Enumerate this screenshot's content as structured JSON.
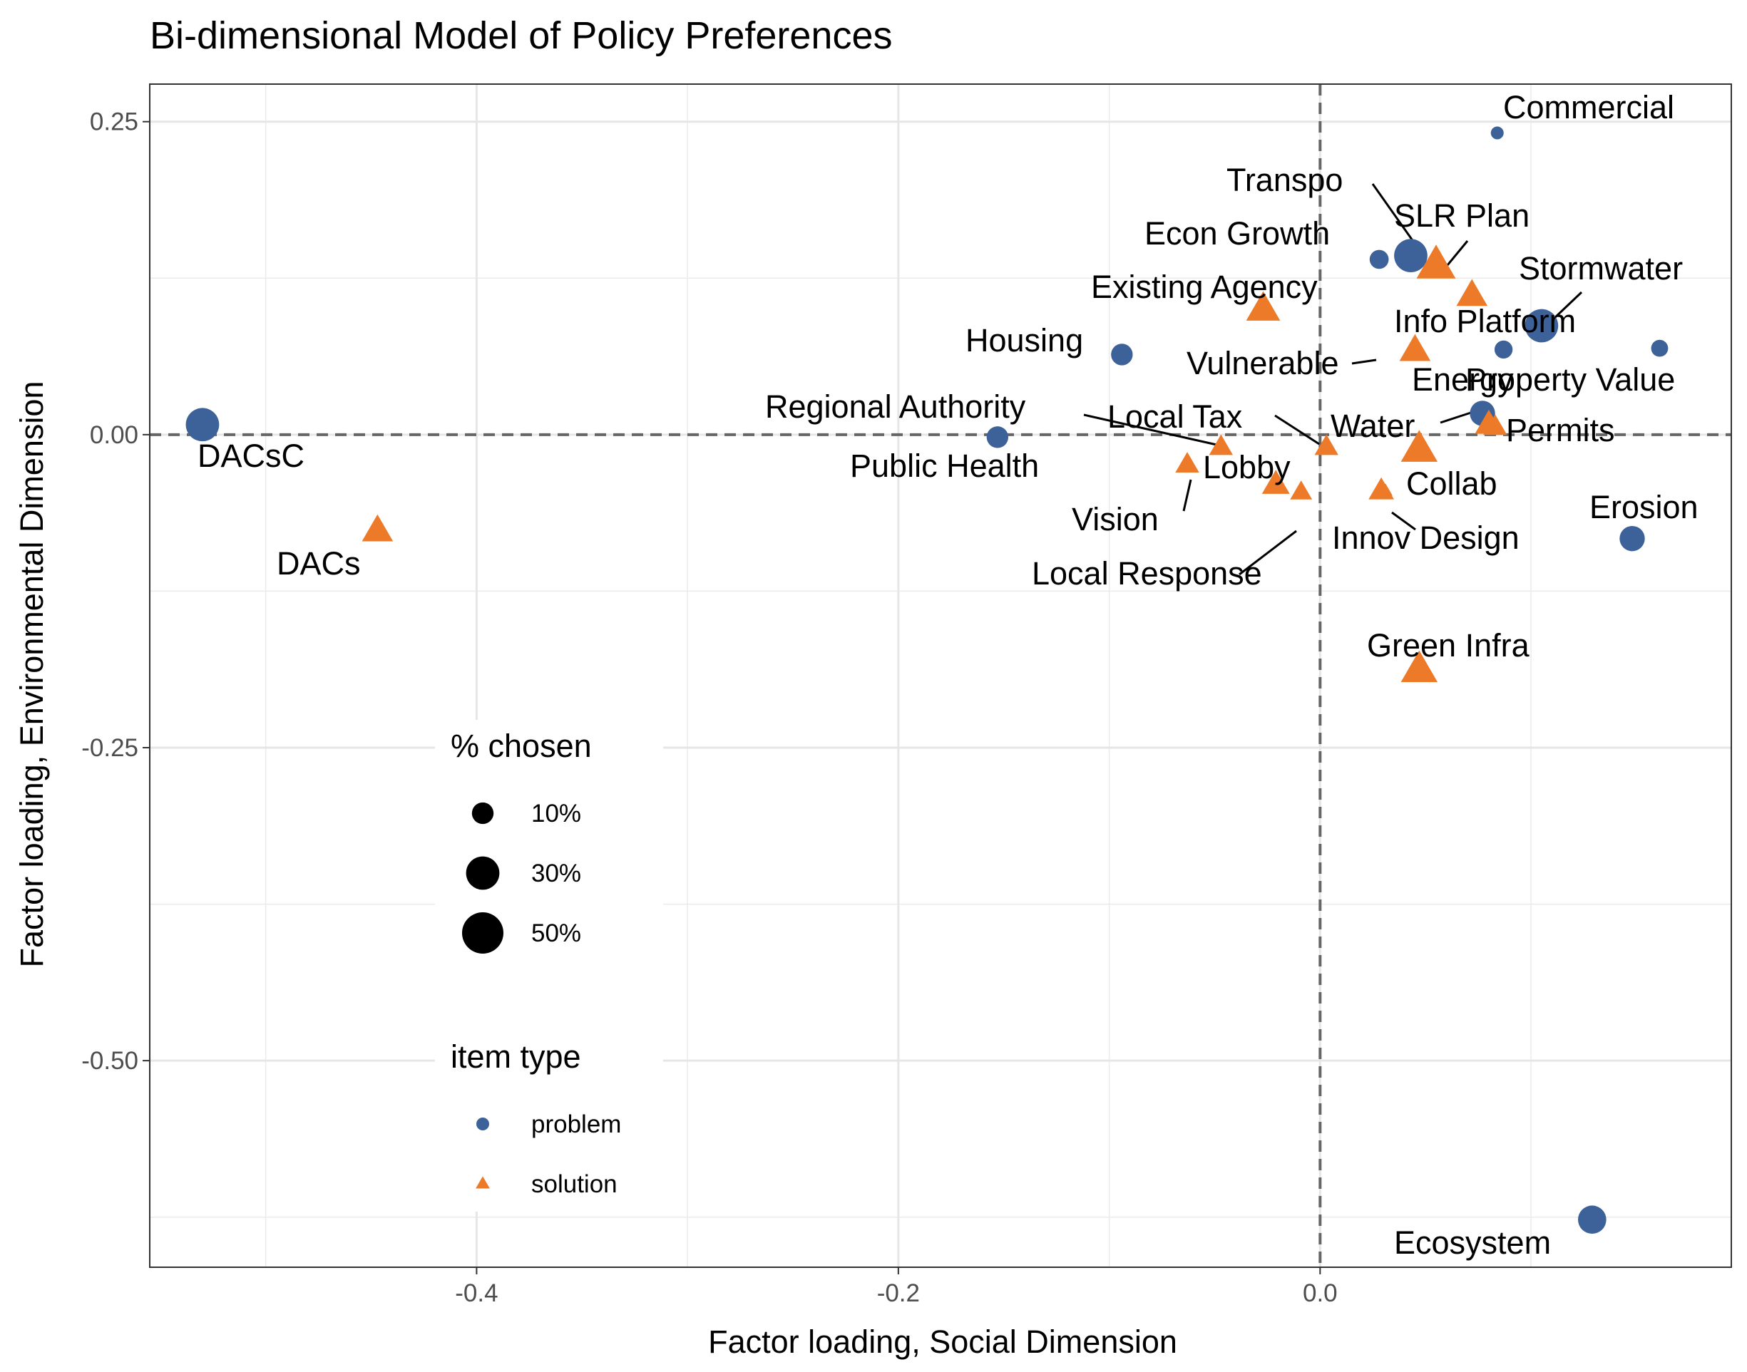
{
  "chart_data": {
    "type": "scatter",
    "title": "Bi-dimensional Model of Policy Preferences",
    "xlabel": "Factor loading, Social Dimension",
    "ylabel": "Factor loading, Environmental Dimension",
    "xlim": [
      -0.555,
      0.195
    ],
    "ylim": [
      -0.665,
      0.28
    ],
    "x_ticks": [
      -0.4,
      -0.2,
      0.0
    ],
    "x_tick_labels": [
      "-0.4",
      "-0.2",
      "0.0"
    ],
    "y_ticks": [
      0.25,
      0.0,
      -0.25,
      -0.5
    ],
    "y_tick_labels": [
      "0.25",
      "0.00",
      "-0.25",
      "-0.50"
    ],
    "grid": true,
    "reference_lines": {
      "x": 0,
      "y": 0,
      "style": "dashed"
    },
    "legend": {
      "placement": "inside-bottom-left",
      "size_title": "% chosen",
      "size_entries": [
        {
          "label": "10%",
          "value": 10
        },
        {
          "label": "30%",
          "value": 30
        },
        {
          "label": "50%",
          "value": 50
        }
      ],
      "type_title": "item type",
      "type_entries": [
        {
          "label": "problem",
          "shape": "circle",
          "color": "#3d6199"
        },
        {
          "label": "solution",
          "shape": "triangle",
          "color": "#ec7a28"
        }
      ]
    },
    "colors": {
      "problem": "#3d6199",
      "solution": "#ec7a28"
    },
    "points": [
      {
        "label": "Commercial",
        "type": "problem",
        "x": 0.084,
        "y": 0.241,
        "pct": 2
      },
      {
        "label": "Transpo",
        "type": "problem",
        "x": 0.043,
        "y": 0.143,
        "pct": 30
      },
      {
        "label": "Econ Growth",
        "type": "problem",
        "x": 0.028,
        "y": 0.14,
        "pct": 7
      },
      {
        "label": "SLR Plan",
        "type": "solution",
        "x": 0.055,
        "y": 0.135,
        "pct": 35
      },
      {
        "label": "",
        "type": "solution",
        "x": 0.072,
        "y": 0.111,
        "pct": 20
      },
      {
        "label": "Existing Agency",
        "type": "solution",
        "x": -0.027,
        "y": 0.1,
        "pct": 25
      },
      {
        "label": "Stormwater",
        "type": "problem",
        "x": 0.105,
        "y": 0.087,
        "pct": 30
      },
      {
        "label": "Info Platform",
        "type": "problem",
        "x": 0.087,
        "y": 0.068,
        "pct": 6
      },
      {
        "label": "",
        "type": "problem",
        "x": 0.161,
        "y": 0.069,
        "pct": 5
      },
      {
        "label": "Housing",
        "type": "problem",
        "x": -0.094,
        "y": 0.064,
        "pct": 10
      },
      {
        "label": "Vulnerable",
        "type": "solution",
        "x": 0.045,
        "y": 0.067,
        "pct": 20
      },
      {
        "label": "Energy",
        "type": "problem",
        "x": 0.077,
        "y": 0.017,
        "pct": 15
      },
      {
        "label": "Property Value",
        "type": "solution",
        "x": 0.08,
        "y": 0.008,
        "pct": 15
      },
      {
        "label": "Permits",
        "type": "solution",
        "x": 0.083,
        "y": 0.006,
        "pct": 10
      },
      {
        "label": "DACsC",
        "type": "problem",
        "x": -0.53,
        "y": 0.008,
        "pct": 30
      },
      {
        "label": "Public Health",
        "type": "problem",
        "x": -0.153,
        "y": -0.002,
        "pct": 10
      },
      {
        "label": "Regional Authority",
        "type": "solution",
        "x": -0.047,
        "y": -0.01,
        "pct": 10
      },
      {
        "label": "Local Tax",
        "type": "solution",
        "x": 0.003,
        "y": -0.01,
        "pct": 10
      },
      {
        "label": "Water",
        "type": "solution",
        "x": 0.047,
        "y": -0.012,
        "pct": 30
      },
      {
        "label": "Vision",
        "type": "solution",
        "x": -0.063,
        "y": -0.024,
        "pct": 10
      },
      {
        "label": "Lobby",
        "type": "solution",
        "x": -0.021,
        "y": -0.04,
        "pct": 15
      },
      {
        "label": "Local Response",
        "type": "solution",
        "x": -0.009,
        "y": -0.046,
        "pct": 8
      },
      {
        "label": "Collab",
        "type": "solution",
        "x": 0.029,
        "y": -0.045,
        "pct": 12
      },
      {
        "label": "Innov Design",
        "type": "solution",
        "x": 0.031,
        "y": -0.045,
        "pct": 2
      },
      {
        "label": "DACs",
        "type": "solution",
        "x": -0.447,
        "y": -0.077,
        "pct": 20
      },
      {
        "label": "Erosion",
        "type": "problem",
        "x": 0.148,
        "y": -0.083,
        "pct": 15
      },
      {
        "label": "Green Infra",
        "type": "solution",
        "x": 0.047,
        "y": -0.188,
        "pct": 30
      },
      {
        "label": "Ecosystem",
        "type": "problem",
        "x": 0.129,
        "y": -0.627,
        "pct": 20
      }
    ]
  }
}
